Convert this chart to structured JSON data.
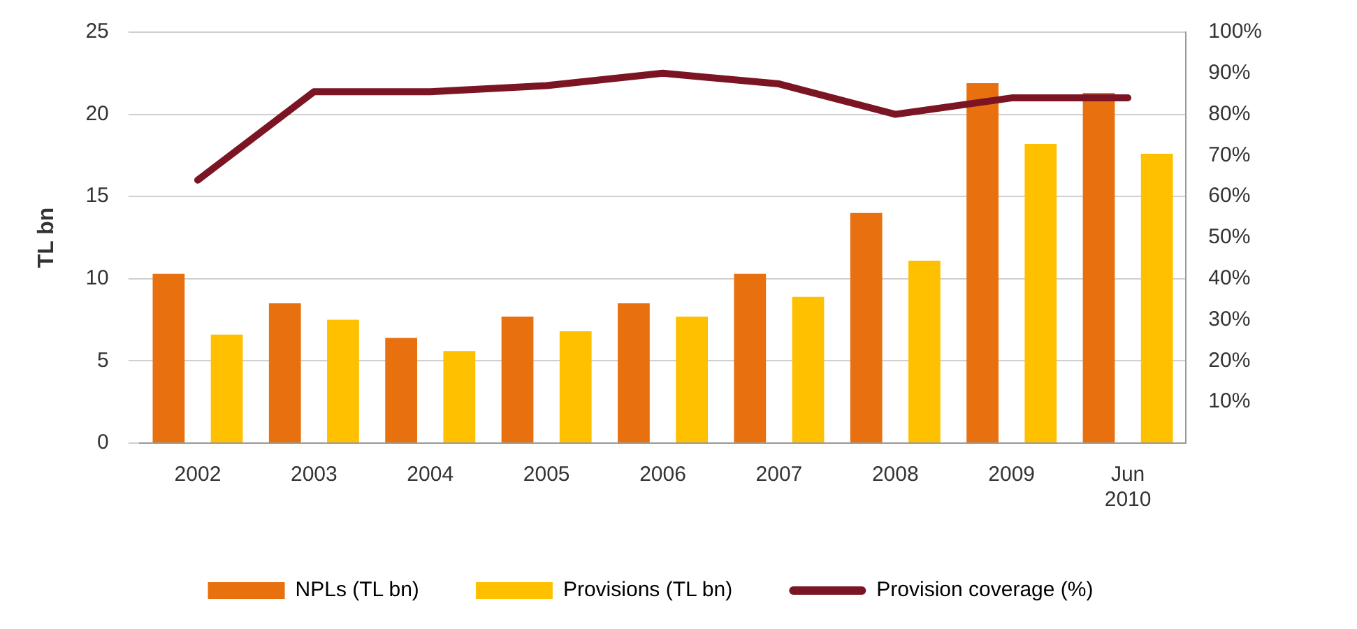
{
  "chart_data": {
    "type": "bar",
    "ylabel": "TL bn",
    "categories": [
      "2002",
      "2003",
      "2004",
      "2005",
      "2006",
      "2007",
      "2008",
      "2009",
      "Jun 2010"
    ],
    "series": [
      {
        "name": "NPLs (TL bn)",
        "color": "#e8700f",
        "values": [
          10.3,
          8.5,
          6.4,
          7.7,
          8.5,
          10.3,
          14.0,
          21.9,
          21.3
        ]
      },
      {
        "name": "Provisions (TL bn)",
        "color": "#ffc000",
        "values": [
          6.6,
          7.5,
          5.6,
          6.8,
          7.7,
          8.9,
          11.1,
          18.2,
          17.6
        ]
      },
      {
        "name": "Provision coverage (%)",
        "type": "line",
        "axis": "y2",
        "color": "#7b1523",
        "values": [
          64,
          85.5,
          85.5,
          87,
          90,
          87.4,
          80,
          84,
          84
        ]
      }
    ],
    "ylim": [
      0,
      25
    ],
    "yticks": [
      0,
      5,
      10,
      15,
      20,
      25
    ],
    "y2lim": [
      0,
      100
    ],
    "y2ticks": [
      {
        "value": 10,
        "label": "10%"
      },
      {
        "value": 20,
        "label": "20%"
      },
      {
        "value": 30,
        "label": "30%"
      },
      {
        "value": 40,
        "label": "40%"
      },
      {
        "value": 50,
        "label": "50%"
      },
      {
        "value": 60,
        "label": "60%"
      },
      {
        "value": 70,
        "label": "70%"
      },
      {
        "value": 80,
        "label": "80%"
      },
      {
        "value": 90,
        "label": "90%"
      },
      {
        "value": 100,
        "label": "100%"
      }
    ],
    "grid": "y",
    "legend": "bottom",
    "marker": "none",
    "line_style": "solid"
  }
}
